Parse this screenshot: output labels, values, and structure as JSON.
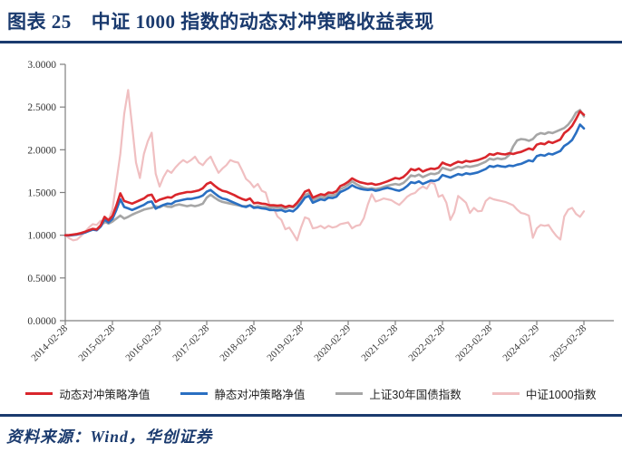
{
  "header": {
    "figure_label": "图表 25",
    "title": "中证 1000 指数的动态对冲策略收益表现"
  },
  "footer": {
    "source_label": "资料来源：Wind，华创证券"
  },
  "colors": {
    "navy": "#1a3a6e",
    "axis": "#7f7f7f",
    "tick_text": "#333333",
    "red": "#d9262c",
    "blue": "#2a6fc2",
    "gray": "#a6a6a6",
    "pink": "#f0bfc1"
  },
  "chart_data": {
    "type": "line",
    "title": "",
    "xlabel": "",
    "ylabel": "",
    "ylim": [
      0.0,
      3.0
    ],
    "grid": false,
    "legend_position": "bottom",
    "y_tick_labels": [
      "3.0000",
      "2.5000",
      "2.0000",
      "1.5000",
      "1.0000",
      "0.5000",
      "0.0000"
    ],
    "y_tick_values": [
      3.0,
      2.5,
      2.0,
      1.5,
      1.0,
      0.5,
      0.0
    ],
    "x_tick_labels": [
      "2014-02-28",
      "2015-02-28",
      "2016-02-29",
      "2017-02-28",
      "2018-02-28",
      "2019-02-28",
      "2020-02-29",
      "2021-02-28",
      "2022-02-28",
      "2023-02-28",
      "2024-02-29",
      "2025-02-28"
    ],
    "x_tick_month_step": 12,
    "points_are_monthly": true,
    "series": [
      {
        "name": "动态对冲策略净值",
        "color": "#d9262c",
        "stroke_width": 2.6,
        "values": [
          1.0,
          1.002,
          1.008,
          1.015,
          1.025,
          1.04,
          1.058,
          1.075,
          1.068,
          1.115,
          1.215,
          1.175,
          1.225,
          1.345,
          1.49,
          1.4,
          1.385,
          1.37,
          1.39,
          1.41,
          1.43,
          1.465,
          1.475,
          1.39,
          1.415,
          1.43,
          1.445,
          1.44,
          1.47,
          1.485,
          1.495,
          1.505,
          1.505,
          1.515,
          1.525,
          1.55,
          1.6,
          1.62,
          1.58,
          1.545,
          1.52,
          1.51,
          1.49,
          1.47,
          1.445,
          1.425,
          1.41,
          1.43,
          1.375,
          1.38,
          1.37,
          1.365,
          1.35,
          1.35,
          1.345,
          1.35,
          1.33,
          1.345,
          1.335,
          1.38,
          1.44,
          1.51,
          1.53,
          1.44,
          1.46,
          1.48,
          1.47,
          1.5,
          1.495,
          1.515,
          1.575,
          1.595,
          1.625,
          1.665,
          1.64,
          1.62,
          1.61,
          1.6,
          1.605,
          1.59,
          1.6,
          1.615,
          1.63,
          1.65,
          1.67,
          1.66,
          1.68,
          1.72,
          1.775,
          1.76,
          1.78,
          1.745,
          1.765,
          1.78,
          1.775,
          1.79,
          1.85,
          1.83,
          1.815,
          1.84,
          1.86,
          1.85,
          1.87,
          1.86,
          1.87,
          1.88,
          1.895,
          1.915,
          1.95,
          1.94,
          1.96,
          1.95,
          1.945,
          1.96,
          1.95,
          1.965,
          1.975,
          1.995,
          2.015,
          2.0,
          2.06,
          2.075,
          2.065,
          2.095,
          2.08,
          2.1,
          2.12,
          2.195,
          2.23,
          2.28,
          2.36,
          2.45,
          2.41
        ]
      },
      {
        "name": "静态对冲策略净值",
        "color": "#2a6fc2",
        "stroke_width": 2.6,
        "values": [
          1.0,
          0.998,
          1.003,
          1.008,
          1.018,
          1.03,
          1.048,
          1.065,
          1.058,
          1.1,
          1.185,
          1.148,
          1.19,
          1.295,
          1.42,
          1.33,
          1.315,
          1.295,
          1.315,
          1.335,
          1.355,
          1.385,
          1.395,
          1.31,
          1.335,
          1.355,
          1.37,
          1.365,
          1.395,
          1.405,
          1.415,
          1.425,
          1.425,
          1.435,
          1.445,
          1.465,
          1.51,
          1.53,
          1.49,
          1.455,
          1.43,
          1.42,
          1.4,
          1.38,
          1.36,
          1.34,
          1.33,
          1.35,
          1.32,
          1.325,
          1.315,
          1.31,
          1.295,
          1.295,
          1.29,
          1.295,
          1.275,
          1.29,
          1.28,
          1.32,
          1.375,
          1.44,
          1.46,
          1.38,
          1.4,
          1.42,
          1.41,
          1.44,
          1.435,
          1.45,
          1.505,
          1.525,
          1.55,
          1.585,
          1.56,
          1.545,
          1.535,
          1.53,
          1.535,
          1.52,
          1.53,
          1.545,
          1.555,
          1.545,
          1.53,
          1.52,
          1.54,
          1.575,
          1.62,
          1.61,
          1.63,
          1.6,
          1.62,
          1.64,
          1.635,
          1.65,
          1.705,
          1.69,
          1.675,
          1.695,
          1.715,
          1.705,
          1.725,
          1.715,
          1.725,
          1.735,
          1.755,
          1.775,
          1.81,
          1.8,
          1.815,
          1.805,
          1.8,
          1.815,
          1.81,
          1.825,
          1.835,
          1.855,
          1.875,
          1.865,
          1.925,
          1.94,
          1.93,
          1.955,
          1.945,
          1.965,
          1.985,
          2.045,
          2.075,
          2.115,
          2.195,
          2.295,
          2.25
        ]
      },
      {
        "name": "上证30年国债指数",
        "color": "#a6a6a6",
        "stroke_width": 2.6,
        "values": [
          1.0,
          1.0,
          1.005,
          1.012,
          1.022,
          1.038,
          1.055,
          1.072,
          1.065,
          1.105,
          1.16,
          1.135,
          1.16,
          1.195,
          1.23,
          1.195,
          1.215,
          1.24,
          1.26,
          1.28,
          1.3,
          1.31,
          1.32,
          1.34,
          1.325,
          1.35,
          1.335,
          1.33,
          1.35,
          1.36,
          1.35,
          1.34,
          1.35,
          1.34,
          1.35,
          1.37,
          1.44,
          1.475,
          1.44,
          1.41,
          1.39,
          1.38,
          1.37,
          1.36,
          1.35,
          1.34,
          1.34,
          1.35,
          1.33,
          1.34,
          1.33,
          1.33,
          1.32,
          1.33,
          1.32,
          1.325,
          1.31,
          1.33,
          1.325,
          1.36,
          1.415,
          1.47,
          1.49,
          1.41,
          1.43,
          1.45,
          1.44,
          1.47,
          1.465,
          1.48,
          1.54,
          1.56,
          1.59,
          1.63,
          1.6,
          1.575,
          1.555,
          1.545,
          1.55,
          1.54,
          1.55,
          1.565,
          1.58,
          1.59,
          1.6,
          1.59,
          1.61,
          1.65,
          1.7,
          1.69,
          1.71,
          1.68,
          1.7,
          1.72,
          1.715,
          1.73,
          1.79,
          1.775,
          1.76,
          1.78,
          1.8,
          1.79,
          1.81,
          1.8,
          1.81,
          1.82,
          1.84,
          1.86,
          1.895,
          1.885,
          1.9,
          1.89,
          1.9,
          1.94,
          2.04,
          2.11,
          2.125,
          2.12,
          2.105,
          2.125,
          2.175,
          2.195,
          2.185,
          2.205,
          2.195,
          2.215,
          2.235,
          2.255,
          2.295,
          2.355,
          2.435,
          2.465,
          2.39
        ]
      },
      {
        "name": "中证1000指数",
        "color": "#f0bfc1",
        "stroke_width": 2.2,
        "values": [
          1.0,
          0.965,
          0.94,
          0.95,
          0.99,
          1.04,
          1.09,
          1.13,
          1.12,
          1.17,
          1.14,
          1.18,
          1.3,
          1.62,
          1.95,
          2.42,
          2.7,
          2.28,
          1.85,
          1.67,
          1.95,
          2.1,
          2.2,
          1.72,
          1.57,
          1.68,
          1.76,
          1.73,
          1.79,
          1.84,
          1.88,
          1.85,
          1.88,
          1.92,
          1.85,
          1.82,
          1.88,
          1.92,
          1.82,
          1.73,
          1.78,
          1.82,
          1.88,
          1.86,
          1.85,
          1.76,
          1.66,
          1.62,
          1.56,
          1.6,
          1.52,
          1.5,
          1.35,
          1.32,
          1.22,
          1.18,
          1.07,
          1.09,
          1.02,
          0.94,
          1.09,
          1.21,
          1.19,
          1.08,
          1.09,
          1.11,
          1.08,
          1.11,
          1.09,
          1.1,
          1.13,
          1.14,
          1.15,
          1.08,
          1.11,
          1.12,
          1.2,
          1.36,
          1.48,
          1.395,
          1.41,
          1.43,
          1.42,
          1.41,
          1.38,
          1.355,
          1.4,
          1.45,
          1.48,
          1.495,
          1.54,
          1.57,
          1.545,
          1.62,
          1.6,
          1.45,
          1.47,
          1.38,
          1.18,
          1.27,
          1.46,
          1.42,
          1.38,
          1.26,
          1.32,
          1.28,
          1.285,
          1.4,
          1.44,
          1.42,
          1.41,
          1.4,
          1.39,
          1.37,
          1.35,
          1.3,
          1.26,
          1.25,
          1.23,
          0.97,
          1.08,
          1.12,
          1.11,
          1.12,
          1.05,
          0.99,
          0.95,
          1.22,
          1.3,
          1.32,
          1.25,
          1.215,
          1.28
        ]
      }
    ]
  }
}
